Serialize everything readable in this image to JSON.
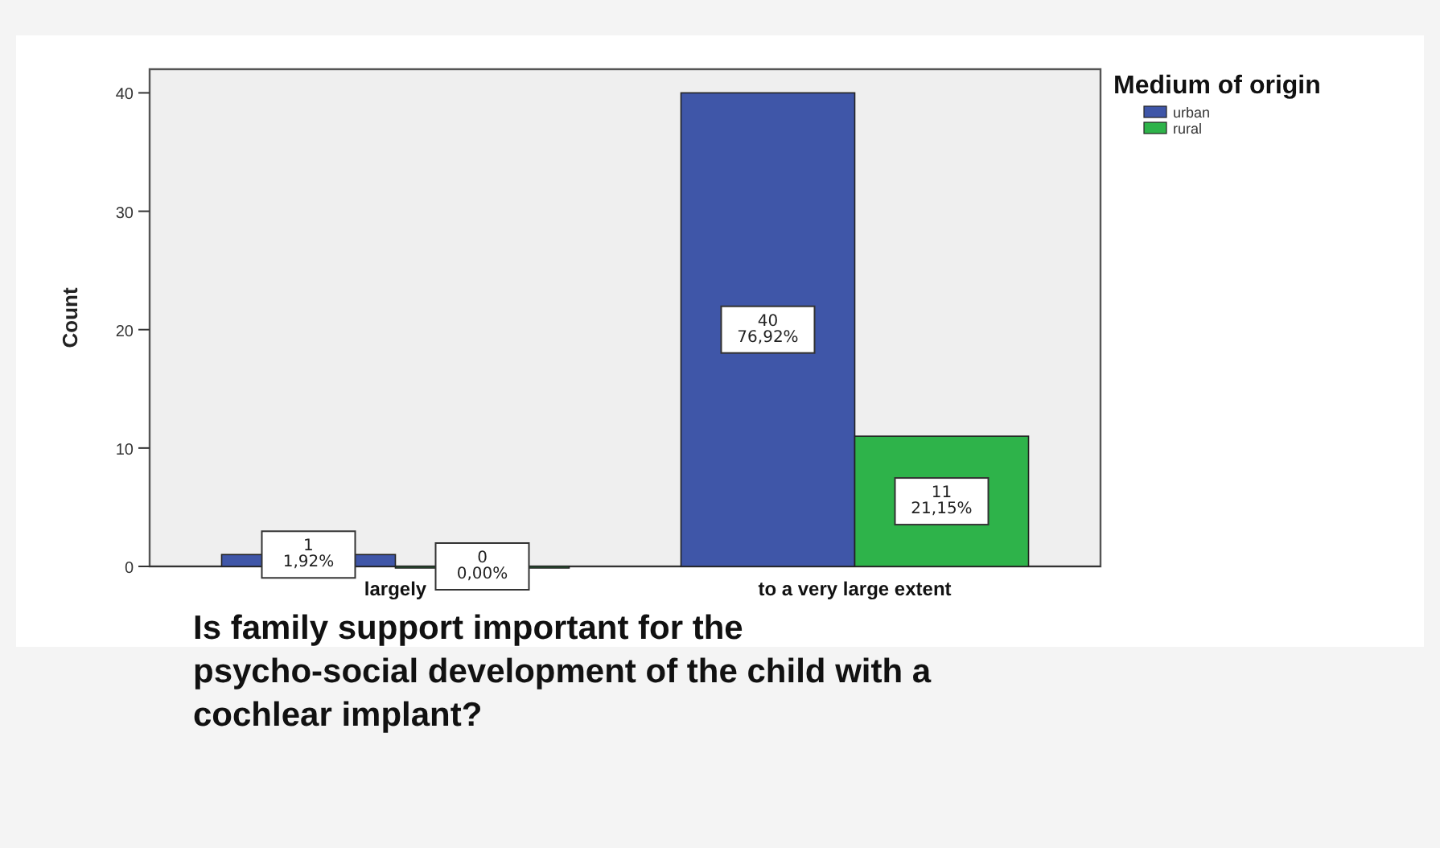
{
  "chart_data": {
    "type": "bar",
    "xlabel": "Is family support important for the psycho-social development of the child with a cochlear implant?",
    "ylabel": "Count",
    "legend_title": "Medium of origin",
    "legend": "top right",
    "categories": [
      "largely",
      "to a very large extent"
    ],
    "series": [
      {
        "name": "urban",
        "color": "#3f56a8",
        "values": [
          1,
          40
        ],
        "value_labels": [
          "1\n1,92%",
          "40\n76,92%"
        ]
      },
      {
        "name": "rural",
        "color": "#2eb34a",
        "values": [
          0,
          11
        ],
        "value_labels": [
          "0\n0,00%",
          "11\n21,15%"
        ]
      }
    ],
    "ylim": [
      0,
      42
    ],
    "yticks": [
      0,
      10,
      20,
      30,
      40
    ],
    "grid": false
  }
}
